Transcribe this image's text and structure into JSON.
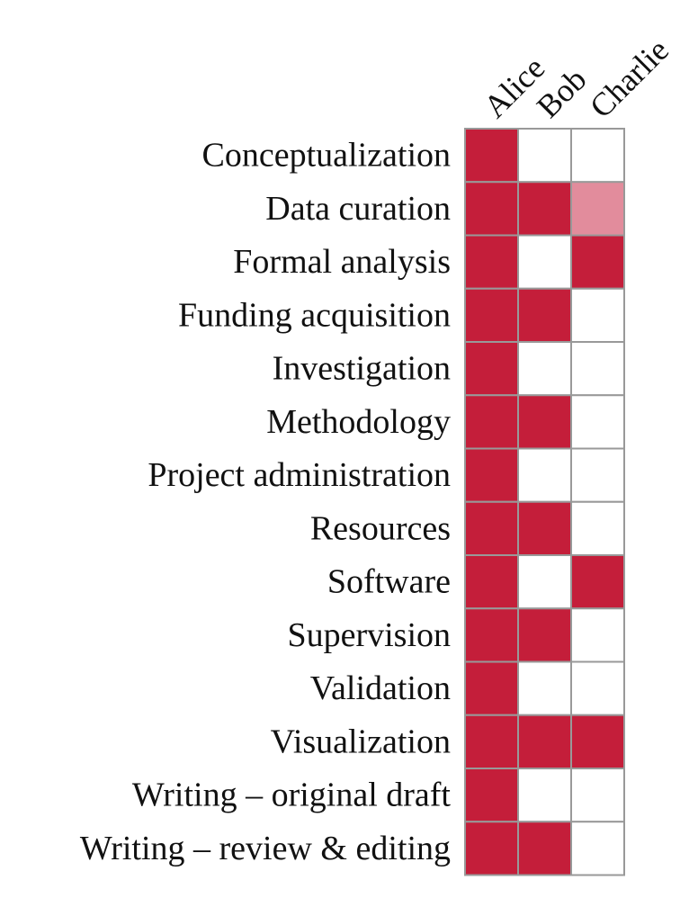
{
  "chart_data": {
    "type": "heatmap",
    "title": "",
    "xlabel": "",
    "ylabel": "",
    "columns": [
      "Alice",
      "Bob",
      "Charlie"
    ],
    "rows": [
      "Conceptualization",
      "Data curation",
      "Formal analysis",
      "Funding acquisition",
      "Investigation",
      "Methodology",
      "Project administration",
      "Resources",
      "Software",
      "Supervision",
      "Validation",
      "Visualization",
      "Writing – original draft",
      "Writing – review & editing"
    ],
    "values": [
      [
        1,
        0,
        0
      ],
      [
        1,
        1,
        0.5
      ],
      [
        1,
        0,
        1
      ],
      [
        1,
        1,
        0
      ],
      [
        1,
        0,
        0
      ],
      [
        1,
        1,
        0
      ],
      [
        1,
        0,
        0
      ],
      [
        1,
        1,
        0
      ],
      [
        1,
        0,
        1
      ],
      [
        1,
        1,
        0
      ],
      [
        1,
        0,
        0
      ],
      [
        1,
        1,
        1
      ],
      [
        1,
        0,
        0
      ],
      [
        1,
        1,
        0
      ]
    ],
    "value_scale": {
      "full": 1,
      "partial": 0.5,
      "none": 0
    },
    "colors": {
      "full": "#c41e3a",
      "partial": "#e28c9c",
      "none": "#ffffff",
      "grid": "#999999"
    },
    "legend": "none",
    "grid": true
  }
}
